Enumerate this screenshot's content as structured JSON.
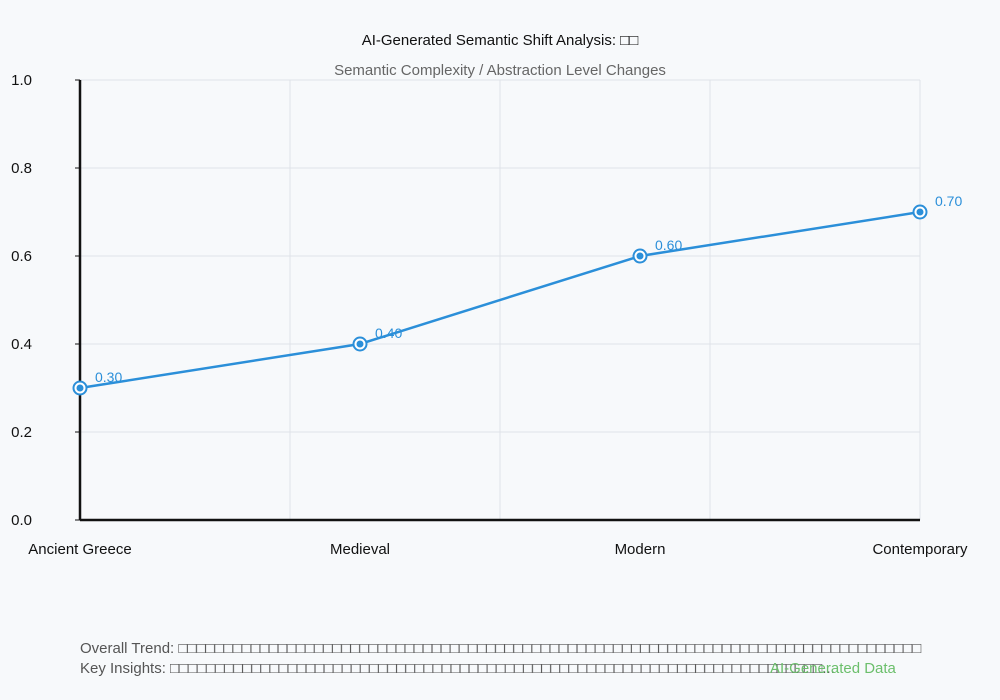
{
  "chart_data": {
    "type": "line",
    "title": "AI-Generated Semantic Shift Analysis: □□",
    "subtitle": "Semantic Complexity / Abstraction Level Changes",
    "categories": [
      "Ancient Greece",
      "Medieval",
      "Modern",
      "Contemporary"
    ],
    "series": [
      {
        "values": [
          0.3,
          0.4,
          0.6,
          0.7
        ]
      }
    ],
    "data_labels": [
      "0.30",
      "0.40",
      "0.60",
      "0.70"
    ],
    "ylim": [
      0,
      1
    ],
    "yticks": [
      0.0,
      0.2,
      0.4,
      0.6,
      0.8,
      1.0
    ],
    "ytick_labels": [
      "0.0",
      "0.2",
      "0.4",
      "0.6",
      "0.8",
      "1.0"
    ],
    "grid": true,
    "line_color": "#2b8fd9"
  },
  "footer": {
    "trend": "Overall Trend: □□□□□□□□□□□□□□□□□□□□□□□□□□□□□□□□□□□□□□□□□□□□□□□□□□□□□□□□□□□□□□□□□□□□□□□□□□□□□□□□□□",
    "insights": "Key Insights: □□□□□□□□□□□□□□□□□□□□□□□□□□□□□□□□□□□□□□□□□□□□□□□□□□□□□□□□□□□□□□□□□□□□□□□□...",
    "watermark": "AI-Generated Data",
    "watermark_color": "#6cbf6c"
  }
}
